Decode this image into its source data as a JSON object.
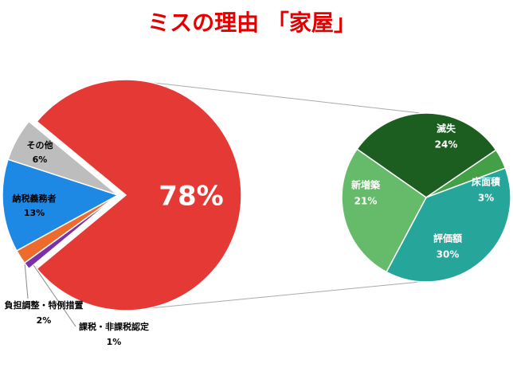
{
  "chart_data": [
    {
      "type": "pie",
      "title": "ミスの理由 「家屋」",
      "categories": [
        null,
        "課税・非課税認定",
        "負担調整・特例措置",
        "納税義務者",
        "その他"
      ],
      "values": [
        78,
        1,
        2,
        13,
        6
      ],
      "value_labels": [
        "78%",
        "1%",
        "2%",
        "13%",
        "6%"
      ],
      "colors": [
        "#e53935",
        "#7b2fa8",
        "#ec6b2d",
        "#1e88e5",
        "#bdbdbd"
      ]
    },
    {
      "type": "pie",
      "categories": [
        "滅失",
        "床面積",
        "評価額",
        "新増築"
      ],
      "values": [
        24,
        3,
        30,
        21
      ],
      "value_labels": [
        "24%",
        "3%",
        "30%",
        "21%"
      ],
      "colors": [
        "#1b5e20",
        "#43a047",
        "#26a69a",
        "#66bb6a"
      ]
    }
  ]
}
